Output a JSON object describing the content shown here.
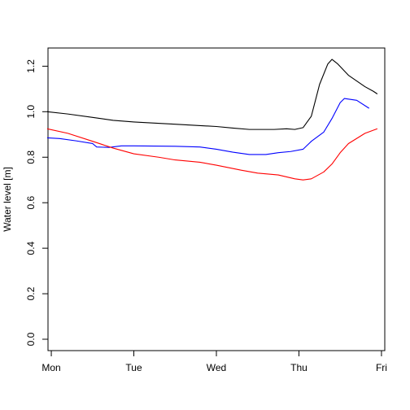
{
  "chart_data": {
    "type": "line",
    "title": "",
    "xlabel": "",
    "ylabel": "Water level [m]",
    "x_unit": "day",
    "x_ticks": [
      {
        "label": "Mon",
        "value": 0
      },
      {
        "label": "Tue",
        "value": 1
      },
      {
        "label": "Wed",
        "value": 2
      },
      {
        "label": "Thu",
        "value": 3
      },
      {
        "label": "Fri",
        "value": 4
      }
    ],
    "xlim": [
      -0.04,
      4.04
    ],
    "ylim": [
      -0.05,
      1.28
    ],
    "y_ticks": [
      0.0,
      0.2,
      0.4,
      0.6,
      0.8,
      1.0,
      1.2
    ],
    "y_tick_labels": [
      "0.0",
      "0.2",
      "0.4",
      "0.6",
      "0.8",
      "1.0",
      "1.2"
    ],
    "grid": false,
    "legend": "none",
    "series": [
      {
        "color": "#000000",
        "points": [
          [
            -0.05,
            1.0
          ],
          [
            0.2,
            0.99
          ],
          [
            0.5,
            0.975
          ],
          [
            0.75,
            0.962
          ],
          [
            1.0,
            0.955
          ],
          [
            1.5,
            0.945
          ],
          [
            2.0,
            0.935
          ],
          [
            2.2,
            0.928
          ],
          [
            2.4,
            0.922
          ],
          [
            2.7,
            0.922
          ],
          [
            2.85,
            0.925
          ],
          [
            2.95,
            0.922
          ],
          [
            3.05,
            0.93
          ],
          [
            3.15,
            0.98
          ],
          [
            3.25,
            1.12
          ],
          [
            3.35,
            1.21
          ],
          [
            3.4,
            1.23
          ],
          [
            3.47,
            1.21
          ],
          [
            3.6,
            1.16
          ],
          [
            3.8,
            1.11
          ],
          [
            3.9,
            1.09
          ],
          [
            3.95,
            1.078
          ]
        ]
      },
      {
        "color": "#0000ff",
        "points": [
          [
            -0.05,
            0.885
          ],
          [
            0.1,
            0.882
          ],
          [
            0.3,
            0.872
          ],
          [
            0.5,
            0.86
          ],
          [
            0.55,
            0.845
          ],
          [
            0.7,
            0.843
          ],
          [
            0.85,
            0.85
          ],
          [
            1.0,
            0.85
          ],
          [
            1.5,
            0.848
          ],
          [
            1.8,
            0.845
          ],
          [
            2.0,
            0.835
          ],
          [
            2.2,
            0.822
          ],
          [
            2.4,
            0.812
          ],
          [
            2.6,
            0.812
          ],
          [
            2.75,
            0.82
          ],
          [
            2.9,
            0.825
          ],
          [
            3.05,
            0.835
          ],
          [
            3.15,
            0.87
          ],
          [
            3.3,
            0.91
          ],
          [
            3.4,
            0.97
          ],
          [
            3.5,
            1.04
          ],
          [
            3.55,
            1.058
          ],
          [
            3.7,
            1.05
          ],
          [
            3.85,
            1.015
          ]
        ]
      },
      {
        "color": "#ff0000",
        "points": [
          [
            -0.05,
            0.925
          ],
          [
            0.2,
            0.905
          ],
          [
            0.5,
            0.87
          ],
          [
            0.75,
            0.84
          ],
          [
            1.0,
            0.815
          ],
          [
            1.3,
            0.8
          ],
          [
            1.5,
            0.788
          ],
          [
            1.8,
            0.778
          ],
          [
            2.0,
            0.765
          ],
          [
            2.3,
            0.743
          ],
          [
            2.5,
            0.73
          ],
          [
            2.75,
            0.722
          ],
          [
            2.95,
            0.705
          ],
          [
            3.05,
            0.7
          ],
          [
            3.15,
            0.705
          ],
          [
            3.3,
            0.735
          ],
          [
            3.4,
            0.77
          ],
          [
            3.5,
            0.82
          ],
          [
            3.6,
            0.86
          ],
          [
            3.8,
            0.905
          ],
          [
            3.95,
            0.925
          ]
        ]
      }
    ]
  }
}
